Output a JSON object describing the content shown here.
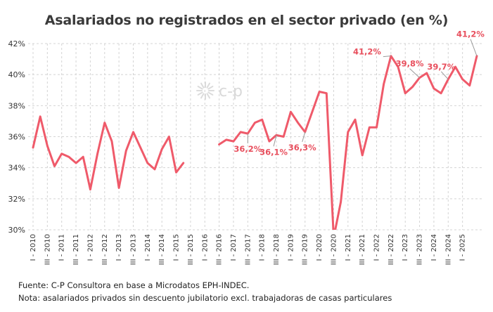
{
  "title": "Asalariados no registrados en el sector privado (en %)",
  "watermark": "c-p",
  "footer": {
    "source": "Fuente: C-P Consultora en base a Microdatos EPH-INDEC.",
    "note": "Nota: asalariados privados sin descuento jubilatorio excl. trabajadoras de casas particulares"
  },
  "colors": {
    "line": "#ef5a6a",
    "label": "#e8505e",
    "grid": "#d4d4d4"
  },
  "chart_data": {
    "type": "line",
    "title": "Asalariados no registrados en el sector privado (en %)",
    "xlabel": "",
    "ylabel": "",
    "ylim": [
      30,
      42
    ],
    "yticks": [
      30,
      32,
      34,
      36,
      38,
      40,
      42
    ],
    "ytick_format": "%",
    "grid": true,
    "xtick_labels": [
      "I - 2010",
      "III - 2010",
      "I - 2011",
      "III - 2011",
      "I - 2012",
      "III - 2012",
      "I - 2013",
      "III - 2013",
      "I - 2014",
      "III - 2014",
      "I - 2015",
      "III - 2015",
      "I - 2016",
      "III - 2016",
      "I - 2017",
      "III - 2017",
      "I - 2018",
      "III - 2018",
      "I - 2019",
      "III - 2019",
      "I - 2020",
      "III - 2020",
      "I - 2021",
      "III - 2021",
      "I - 2022",
      "III - 2022",
      "I - 2023",
      "III - 2023",
      "I - 2024",
      "III - 2024",
      "I - 2025"
    ],
    "series": [
      {
        "name": "Asalariados no registrados (%)",
        "values": [
          35.3,
          37.3,
          35.4,
          34.1,
          34.9,
          34.7,
          34.3,
          34.7,
          32.6,
          34.9,
          36.9,
          35.7,
          32.7,
          35.1,
          36.3,
          35.3,
          34.3,
          33.9,
          35.2,
          36.0,
          33.7,
          34.3,
          null,
          null,
          null,
          null,
          35.5,
          35.8,
          35.7,
          36.3,
          36.2,
          36.9,
          37.1,
          35.7,
          36.1,
          36.0,
          37.6,
          36.9,
          36.3,
          37.6,
          38.9,
          38.8,
          29.5,
          31.8,
          36.3,
          37.1,
          34.8,
          36.6,
          36.6,
          39.4,
          41.2,
          40.5,
          38.8,
          39.2,
          39.8,
          40.1,
          39.1,
          38.8,
          39.7,
          40.5,
          39.7,
          39.3,
          41.2
        ]
      }
    ],
    "annotations": [
      {
        "index": 30,
        "text": "36,2%"
      },
      {
        "index": 34,
        "text": "36,1%"
      },
      {
        "index": 38,
        "text": "36,3%"
      },
      {
        "index": 50,
        "text": "41,2%"
      },
      {
        "index": 54,
        "text": "39,8%"
      },
      {
        "index": 58,
        "text": "39,7%"
      },
      {
        "index": 62,
        "text": "41,2%"
      }
    ]
  }
}
